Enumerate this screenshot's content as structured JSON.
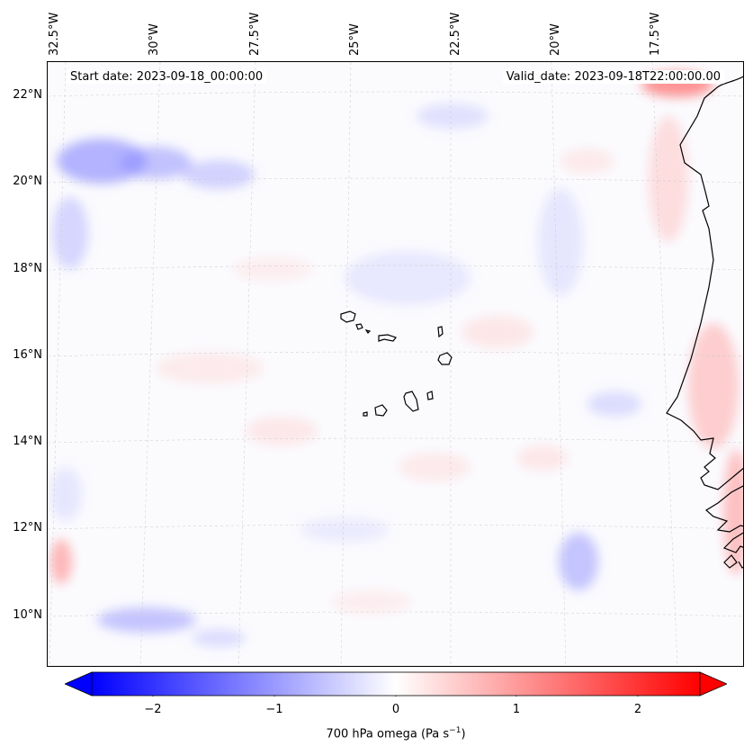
{
  "header": {
    "start_date": "Start date: 2023-09-18_00:00:00",
    "valid_date": "Valid_date: 2023-09-18T22:00:00.00"
  },
  "map": {
    "lon_labels": [
      "32.5°W",
      "30°W",
      "27.5°W",
      "25°W",
      "22.5°W",
      "20°W",
      "17.5°W"
    ],
    "lat_labels": [
      "22°N",
      "20°N",
      "18°N",
      "16°N",
      "14°N",
      "12°N",
      "10°N"
    ],
    "field": "700 hPa omega",
    "colors": {
      "negative": "#0000ff",
      "zero": "#ffffff",
      "positive": "#ff0000",
      "coastline": "#000000"
    }
  },
  "colorbar": {
    "ticks": [
      "−2",
      "−1",
      "0",
      "1",
      "2"
    ],
    "label": "700 hPa omega (Pa s",
    "label_sup": "−1",
    "label_end": ")",
    "range": [
      -2.5,
      2.5
    ]
  }
}
